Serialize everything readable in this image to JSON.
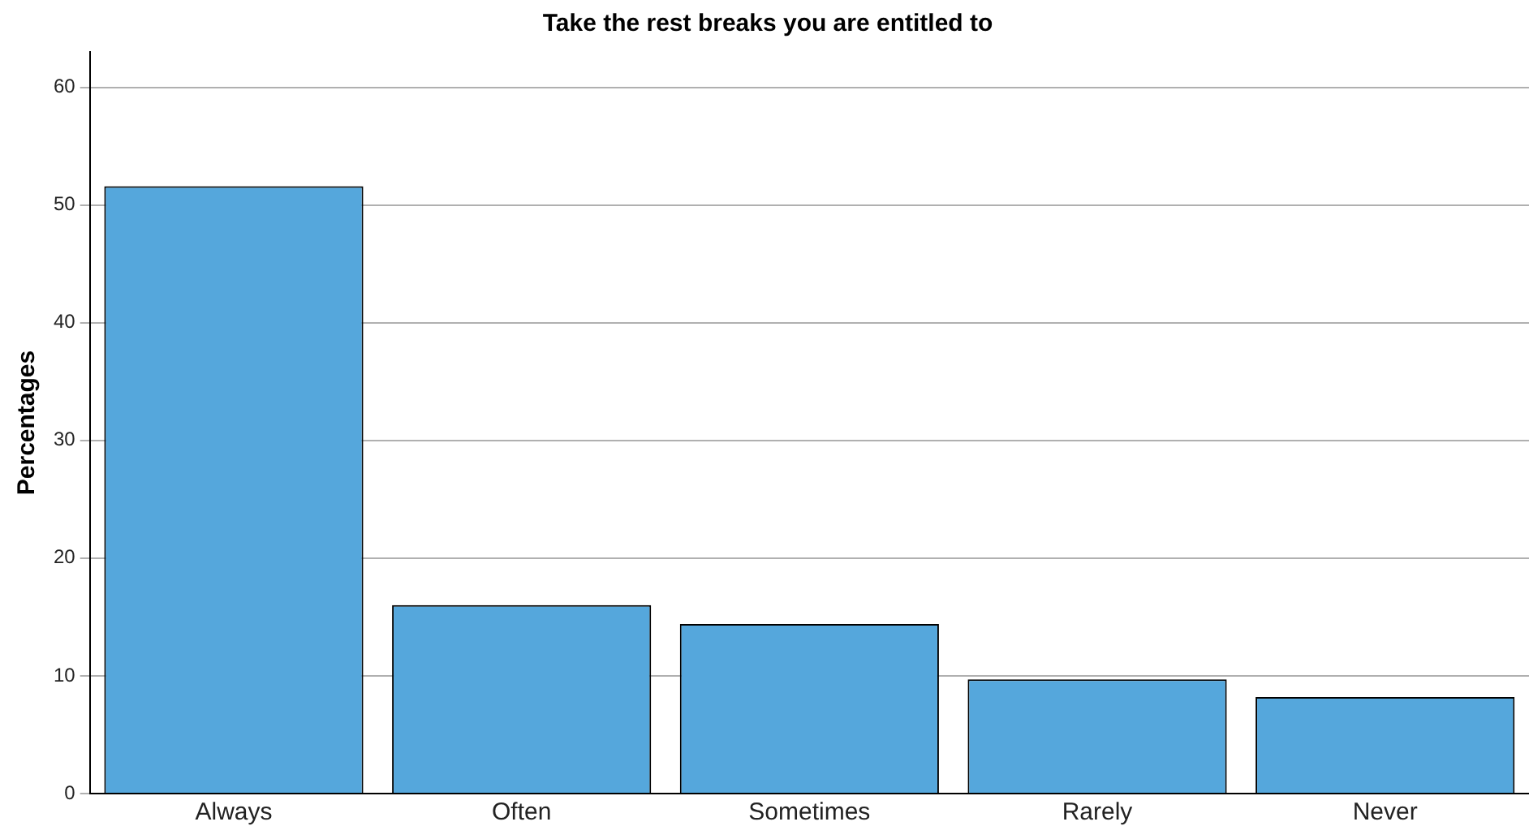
{
  "chart_data": {
    "type": "bar",
    "title": "Take the rest breaks you are entitled to",
    "ylabel": "Percentages",
    "categories": [
      "Always",
      "Often",
      "Sometimes",
      "Rarely",
      "Never"
    ],
    "values": [
      51.6,
      16.0,
      14.4,
      9.7,
      8.2
    ],
    "color": "#55a7dc",
    "ylim": [
      0,
      63
    ],
    "yticks": [
      0,
      10,
      20,
      30,
      40,
      50,
      60
    ],
    "grid": "y",
    "legend": false
  }
}
